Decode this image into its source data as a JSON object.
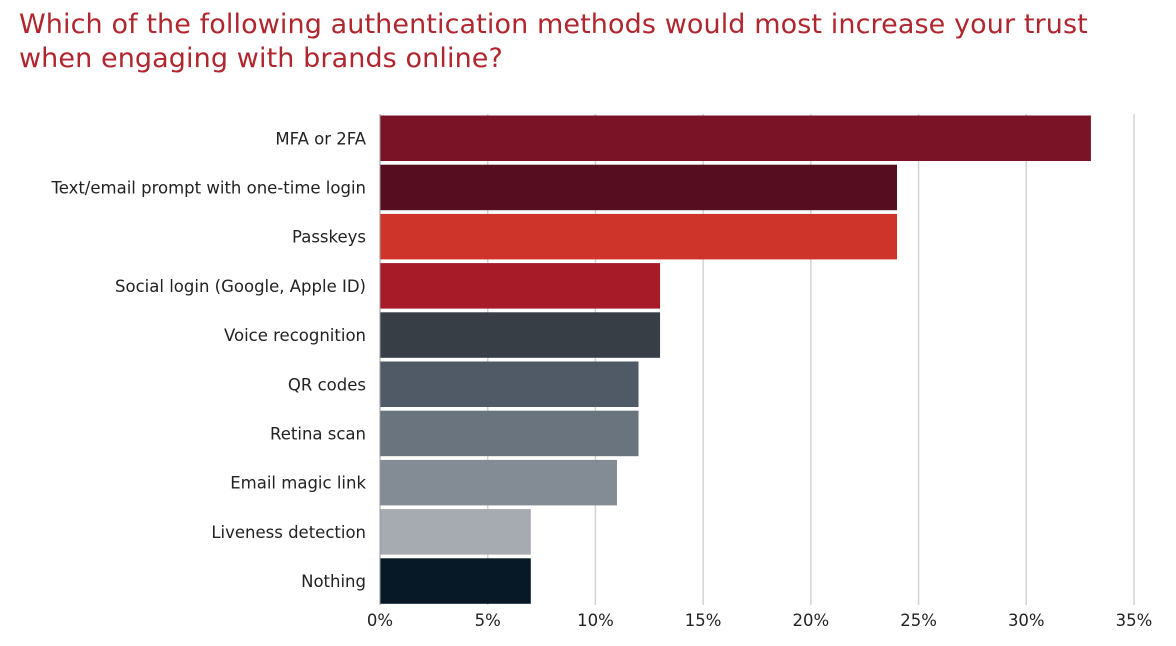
{
  "chart_data": {
    "type": "bar",
    "orientation": "horizontal",
    "title_lines": [
      "Which of the following authentication methods would most increase your trust",
      "when engaging with brands online?"
    ],
    "categories": [
      "MFA or 2FA",
      "Text/email prompt with one-time login",
      "Passkeys",
      "Social login (Google, Apple ID)",
      "Voice recognition",
      "QR codes",
      "Retina scan",
      "Email magic link",
      "Liveness detection",
      "Nothing"
    ],
    "values": [
      33,
      24,
      24,
      13,
      13,
      12,
      12,
      11,
      7,
      7
    ],
    "colors": [
      "#7b1326",
      "#560d1f",
      "#cf342b",
      "#a71b28",
      "#373e46",
      "#4f5a66",
      "#6a747e",
      "#838b94",
      "#a6abb1",
      "#071826"
    ],
    "xlim": [
      0,
      35
    ],
    "xticks": [
      0,
      5,
      10,
      15,
      20,
      25,
      30,
      35
    ],
    "xtick_labels": [
      "0%",
      "5%",
      "10%",
      "15%",
      "20%",
      "25%",
      "30%",
      "35%"
    ],
    "grid": "vertical",
    "gridline_color": "#d3d3d3",
    "title_color": "#b0262e",
    "xlabel": "",
    "ylabel": ""
  }
}
